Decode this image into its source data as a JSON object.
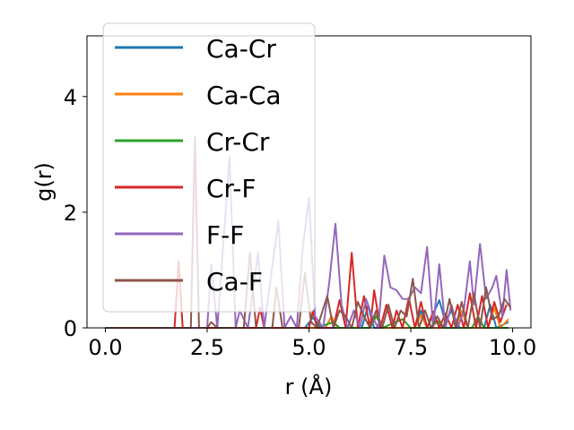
{
  "chart_data": {
    "type": "line",
    "title": "",
    "xlabel": "r (Å)",
    "ylabel": "g(r)",
    "xlim": [
      -0.45,
      10.45
    ],
    "ylim": [
      0,
      5.05
    ],
    "xticks": [
      0.0,
      2.5,
      5.0,
      7.5,
      10.0
    ],
    "xtick_labels": [
      "0.0",
      "2.5",
      "5.0",
      "7.5",
      "10.0"
    ],
    "yticks": [
      0,
      2,
      4
    ],
    "ytick_labels": [
      "0",
      "2",
      "4"
    ],
    "grid": false,
    "legend_position": "upper-left",
    "series": [
      {
        "name": "Ca-Cr",
        "color": "#1f77b4",
        "points": [
          [
            0,
            0
          ],
          [
            4.9,
            0
          ],
          [
            5.1,
            0.18
          ],
          [
            5.3,
            0
          ],
          [
            6.3,
            0
          ],
          [
            6.45,
            0.38
          ],
          [
            6.6,
            0
          ],
          [
            7.6,
            0
          ],
          [
            7.75,
            0.3
          ],
          [
            7.9,
            0
          ],
          [
            8.2,
            0.48
          ],
          [
            8.35,
            0.1
          ],
          [
            8.5,
            0.3
          ],
          [
            8.7,
            0
          ],
          [
            9.3,
            0
          ],
          [
            9.45,
            0.4
          ],
          [
            9.6,
            0
          ],
          [
            9.9,
            0.1
          ]
        ]
      },
      {
        "name": "Ca-Ca",
        "color": "#ff7f0e",
        "points": [
          [
            0,
            0
          ],
          [
            5.4,
            0
          ],
          [
            5.55,
            0.2
          ],
          [
            5.7,
            0
          ],
          [
            6.5,
            0
          ],
          [
            6.65,
            0.25
          ],
          [
            6.8,
            0
          ],
          [
            7.6,
            0
          ],
          [
            7.75,
            0.22
          ],
          [
            7.9,
            0
          ],
          [
            8.6,
            0
          ],
          [
            8.75,
            0.3
          ],
          [
            8.9,
            0
          ],
          [
            9.4,
            0
          ],
          [
            9.55,
            0.35
          ],
          [
            9.7,
            0
          ],
          [
            9.9,
            0.15
          ]
        ]
      },
      {
        "name": "Cr-Cr",
        "color": "#2ca02c",
        "points": [
          [
            0,
            0
          ],
          [
            5.0,
            0
          ],
          [
            5.1,
            0.28
          ],
          [
            5.2,
            0
          ],
          [
            5.6,
            0.1
          ],
          [
            5.75,
            0
          ],
          [
            6.5,
            0
          ],
          [
            6.65,
            0.2
          ],
          [
            6.8,
            0
          ],
          [
            7.3,
            0.15
          ],
          [
            7.5,
            0
          ],
          [
            8.0,
            0
          ],
          [
            8.15,
            0.12
          ],
          [
            8.3,
            0
          ],
          [
            9.0,
            0
          ],
          [
            9.15,
            0.2
          ],
          [
            9.3,
            0
          ],
          [
            9.9,
            0
          ]
        ]
      },
      {
        "name": "Cr-F",
        "color": "#d62728",
        "points": [
          [
            0,
            0
          ],
          [
            1.7,
            0
          ],
          [
            1.8,
            1.15
          ],
          [
            1.9,
            0
          ],
          [
            3.7,
            0
          ],
          [
            3.8,
            0.35
          ],
          [
            3.9,
            0
          ],
          [
            5.0,
            0
          ],
          [
            5.1,
            0.3
          ],
          [
            5.2,
            0
          ],
          [
            5.6,
            0
          ],
          [
            5.75,
            0.48
          ],
          [
            5.9,
            0
          ],
          [
            6.05,
            1.3
          ],
          [
            6.2,
            0
          ],
          [
            6.35,
            0.55
          ],
          [
            6.5,
            0
          ],
          [
            6.6,
            0.65
          ],
          [
            6.75,
            0
          ],
          [
            6.9,
            0.4
          ],
          [
            7.05,
            0
          ],
          [
            7.15,
            0.3
          ],
          [
            7.3,
            0
          ],
          [
            7.45,
            0.52
          ],
          [
            7.6,
            0
          ],
          [
            7.75,
            0.45
          ],
          [
            7.9,
            0
          ],
          [
            8.05,
            0.28
          ],
          [
            8.2,
            0
          ],
          [
            8.35,
            0.25
          ],
          [
            8.5,
            0
          ],
          [
            8.65,
            0.4
          ],
          [
            8.8,
            0
          ],
          [
            8.95,
            0.6
          ],
          [
            9.1,
            0
          ],
          [
            9.25,
            0.55
          ],
          [
            9.4,
            0
          ],
          [
            9.55,
            0.45
          ],
          [
            9.7,
            0.1
          ],
          [
            9.85,
            0.4
          ]
        ]
      },
      {
        "name": "F-F",
        "color": "#9467bd",
        "points": [
          [
            0,
            0
          ],
          [
            2.5,
            0
          ],
          [
            2.6,
            1.1
          ],
          [
            2.75,
            0
          ],
          [
            3.05,
            2.95
          ],
          [
            3.2,
            0
          ],
          [
            3.3,
            0.3
          ],
          [
            3.5,
            0
          ],
          [
            3.75,
            1.3
          ],
          [
            3.9,
            0
          ],
          [
            4.25,
            1.85
          ],
          [
            4.4,
            0
          ],
          [
            4.55,
            0.2
          ],
          [
            4.7,
            0
          ],
          [
            4.85,
            1.4
          ],
          [
            5.0,
            2.25
          ],
          [
            5.15,
            0.2
          ],
          [
            5.35,
            0
          ],
          [
            5.5,
            0.8
          ],
          [
            5.65,
            1.8
          ],
          [
            5.8,
            0.4
          ],
          [
            5.95,
            0
          ],
          [
            6.1,
            0.3
          ],
          [
            6.25,
            0
          ],
          [
            6.4,
            0.5
          ],
          [
            6.55,
            0.2
          ],
          [
            6.7,
            0
          ],
          [
            6.85,
            1.25
          ],
          [
            7.0,
            0.7
          ],
          [
            7.15,
            0.65
          ],
          [
            7.3,
            0.5
          ],
          [
            7.45,
            0.5
          ],
          [
            7.6,
            0.7
          ],
          [
            7.75,
            0.6
          ],
          [
            7.9,
            1.4
          ],
          [
            8.05,
            0
          ],
          [
            8.2,
            1.1
          ],
          [
            8.35,
            0
          ],
          [
            8.5,
            0.4
          ],
          [
            8.65,
            0
          ],
          [
            8.8,
            0.3
          ],
          [
            8.95,
            1.15
          ],
          [
            9.05,
            0.4
          ],
          [
            9.2,
            1.45
          ],
          [
            9.35,
            0.5
          ],
          [
            9.5,
            0.7
          ],
          [
            9.6,
            0.9
          ],
          [
            9.75,
            0.2
          ],
          [
            9.85,
            1.0
          ],
          [
            9.95,
            0.3
          ]
        ]
      },
      {
        "name": "Ca-F",
        "color": "#8c564b",
        "points": [
          [
            0,
            0
          ],
          [
            2.1,
            0
          ],
          [
            2.2,
            3.3
          ],
          [
            2.3,
            0
          ],
          [
            2.5,
            0
          ],
          [
            2.6,
            0.1
          ],
          [
            2.75,
            0
          ],
          [
            3.4,
            0
          ],
          [
            3.55,
            1.3
          ],
          [
            3.7,
            0
          ],
          [
            4.1,
            0
          ],
          [
            4.2,
            0.7
          ],
          [
            4.35,
            0
          ],
          [
            4.75,
            0
          ],
          [
            4.9,
            0.95
          ],
          [
            5.05,
            0.1
          ],
          [
            5.2,
            0
          ],
          [
            5.45,
            0.55
          ],
          [
            5.6,
            0
          ],
          [
            5.75,
            0.3
          ],
          [
            5.9,
            0.2
          ],
          [
            6.05,
            0
          ],
          [
            6.2,
            0.45
          ],
          [
            6.35,
            0.2
          ],
          [
            6.5,
            0
          ],
          [
            6.65,
            0.3
          ],
          [
            6.8,
            0
          ],
          [
            6.95,
            0.4
          ],
          [
            7.1,
            0
          ],
          [
            7.25,
            0.3
          ],
          [
            7.4,
            0.2
          ],
          [
            7.55,
            0.85
          ],
          [
            7.7,
            0
          ],
          [
            7.85,
            0.3
          ],
          [
            8.0,
            0
          ],
          [
            8.15,
            0.2
          ],
          [
            8.3,
            0
          ],
          [
            8.45,
            0.5
          ],
          [
            8.6,
            0
          ],
          [
            8.75,
            0.45
          ],
          [
            8.9,
            0
          ],
          [
            9.05,
            0.6
          ],
          [
            9.2,
            0
          ],
          [
            9.35,
            0.7
          ],
          [
            9.5,
            0.15
          ],
          [
            9.65,
            0.2
          ],
          [
            9.8,
            0.5
          ],
          [
            9.95,
            0.35
          ]
        ]
      }
    ]
  }
}
